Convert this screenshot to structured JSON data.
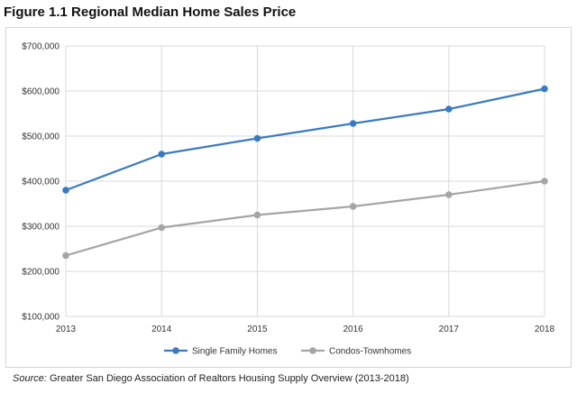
{
  "figure": {
    "title": "Figure 1.1 Regional Median Home Sales Price",
    "source_label": "Source:",
    "source_text": " Greater San Diego Association of Realtors Housing Supply Overview (2013-2018)"
  },
  "chart_data": {
    "type": "line",
    "title": "",
    "xlabel": "",
    "ylabel": "",
    "x": [
      "2013",
      "2014",
      "2015",
      "2016",
      "2017",
      "2018"
    ],
    "y_ticks": [
      100000,
      200000,
      300000,
      400000,
      500000,
      600000,
      700000
    ],
    "y_tick_labels": [
      "$100,000",
      "$200,000",
      "$300,000",
      "$400,000",
      "$500,000",
      "$600,000",
      "$700,000"
    ],
    "ylim": [
      100000,
      700000
    ],
    "grid": "horizontal",
    "legend_position": "bottom",
    "series": [
      {
        "name": "Single Family Homes",
        "color": "#3a7bbf",
        "values": [
          380000,
          460000,
          495000,
          528000,
          560000,
          605000
        ]
      },
      {
        "name": "Condos-Townhomes",
        "color": "#a5a5a5",
        "values": [
          235000,
          297000,
          325000,
          344000,
          370000,
          400000
        ]
      }
    ]
  }
}
